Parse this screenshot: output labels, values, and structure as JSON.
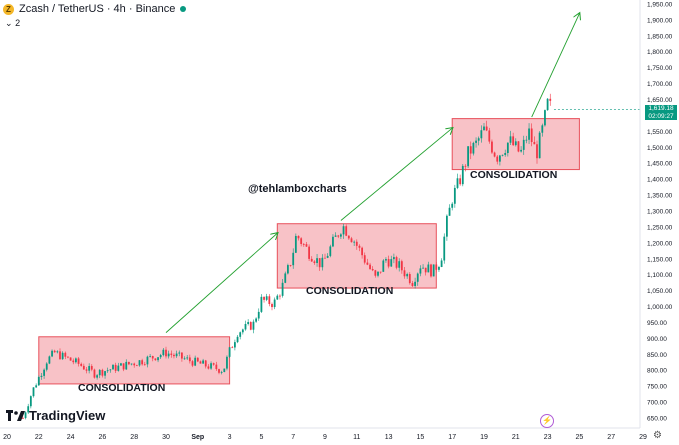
{
  "header": {
    "coin_glyph": "Z",
    "title": "Zcash / TetherUS · 4h · Binance",
    "indicator_count": "2",
    "status_color": "#089981"
  },
  "watermark": {
    "brand": "TradingView"
  },
  "annotations": {
    "author_tag": "@tehlamboxcharts",
    "consolidation_label": "CONSOLIDATION"
  },
  "price_tag": {
    "price": "1,619.18",
    "countdown": "02:09:27"
  },
  "icons": {
    "alert": "lightning-icon",
    "settings": "gear-icon"
  },
  "chart_data": {
    "type": "candlestick",
    "symbol": "Zcash / TetherUS",
    "timeframe": "4h",
    "exchange": "Binance",
    "x_tick_labels": [
      "20",
      "22",
      "24",
      "26",
      "28",
      "30",
      "Sep",
      "3",
      "5",
      "7",
      "9",
      "11",
      "13",
      "15",
      "17",
      "19",
      "21",
      "23",
      "25",
      "27",
      "29"
    ],
    "y_tick_labels": [
      "650.00",
      "700.00",
      "750.00",
      "800.00",
      "850.00",
      "900.00",
      "950.00",
      "1,000.00",
      "1,050.00",
      "1,100.00",
      "1,150.00",
      "1,200.00",
      "1,250.00",
      "1,300.00",
      "1,350.00",
      "1,400.00",
      "1,450.00",
      "1,500.00",
      "1,550.00",
      "1,600.00",
      "1,650.00",
      "1,700.00",
      "1,750.00",
      "1,800.00",
      "1,850.00",
      "1,900.00",
      "1,950.00"
    ],
    "ylim": [
      625,
      1975
    ],
    "grid": false,
    "colors": {
      "up": "#089981",
      "down": "#f23645",
      "box_fill": "#f7b7bd",
      "box_border": "#e8505b",
      "arrow": "#22a02f"
    },
    "consolidation_zones": [
      {
        "label": "CONSOLIDATION",
        "start": "Aug 22",
        "end": "Sep 3",
        "low": 757,
        "high": 905
      },
      {
        "label": "CONSOLIDATION",
        "start": "Sep 6",
        "end": "Sep 16",
        "low": 1058,
        "high": 1260
      },
      {
        "label": "CONSOLIDATION",
        "start": "Sep 17",
        "end": "Sep 25",
        "low": 1430,
        "high": 1590
      }
    ],
    "projection_arrows": [
      {
        "from": {
          "date": "Aug 30",
          "price": 918
        },
        "to": {
          "date": "Sep 6",
          "price": 1230
        }
      },
      {
        "from": {
          "date": "Sep 10",
          "price": 1270
        },
        "to": {
          "date": "Sep 17",
          "price": 1560
        }
      },
      {
        "from": {
          "date": "Sep 22",
          "price": 1595
        },
        "to": {
          "date": "Sep 25",
          "price": 1920
        }
      }
    ],
    "price_path": [
      {
        "date": "Aug 21",
        "price": 650
      },
      {
        "date": "Aug 21.6",
        "price": 735
      },
      {
        "date": "Aug 22.5",
        "price": 830
      },
      {
        "date": "Aug 23",
        "price": 855
      },
      {
        "date": "Aug 24.5",
        "price": 820
      },
      {
        "date": "Aug 25.5",
        "price": 790
      },
      {
        "date": "Aug 27",
        "price": 810
      },
      {
        "date": "Aug 28.5",
        "price": 830
      },
      {
        "date": "Aug 30",
        "price": 855
      },
      {
        "date": "Aug 31.5",
        "price": 830
      },
      {
        "date": "Sep 1.5",
        "price": 815
      },
      {
        "date": "Sep 2.6",
        "price": 800
      },
      {
        "date": "Sep 3",
        "price": 860
      },
      {
        "date": "Sep 3.5",
        "price": 920
      },
      {
        "date": "Sep 4.5",
        "price": 945
      },
      {
        "date": "Sep 5",
        "price": 1020
      },
      {
        "date": "Sep 5.8",
        "price": 1010
      },
      {
        "date": "Sep 6.3",
        "price": 1060
      },
      {
        "date": "Sep 6.9",
        "price": 1150
      },
      {
        "date": "Sep 7.2",
        "price": 1225
      },
      {
        "date": "Sep 8",
        "price": 1170
      },
      {
        "date": "Sep 8.8",
        "price": 1130
      },
      {
        "date": "Sep 9.5",
        "price": 1200
      },
      {
        "date": "Sep 10.1",
        "price": 1255
      },
      {
        "date": "Sep 10.8",
        "price": 1210
      },
      {
        "date": "Sep 11.7",
        "price": 1130
      },
      {
        "date": "Sep 12.2",
        "price": 1085
      },
      {
        "date": "Sep 12.8",
        "price": 1150
      },
      {
        "date": "Sep 13.6",
        "price": 1130
      },
      {
        "date": "Sep 14.5",
        "price": 1080
      },
      {
        "date": "Sep 15",
        "price": 1130
      },
      {
        "date": "Sep 15.8",
        "price": 1110
      },
      {
        "date": "Sep 16.3",
        "price": 1150
      },
      {
        "date": "Sep 16.6",
        "price": 1250
      },
      {
        "date": "Sep 17",
        "price": 1340
      },
      {
        "date": "Sep 17.5",
        "price": 1400
      },
      {
        "date": "Sep 18",
        "price": 1480
      },
      {
        "date": "Sep 18.5",
        "price": 1510
      },
      {
        "date": "Sep 19",
        "price": 1555
      },
      {
        "date": "Sep 19.8",
        "price": 1470
      },
      {
        "date": "Sep 20.6",
        "price": 1520
      },
      {
        "date": "Sep 21.3",
        "price": 1480
      },
      {
        "date": "Sep 21.8",
        "price": 1550
      },
      {
        "date": "Sep 22.3",
        "price": 1480
      },
      {
        "date": "Sep 22.7",
        "price": 1560
      },
      {
        "date": "Sep 23",
        "price": 1635
      },
      {
        "date": "Sep 23.3",
        "price": 1619
      }
    ],
    "last_price": 1619.18
  }
}
